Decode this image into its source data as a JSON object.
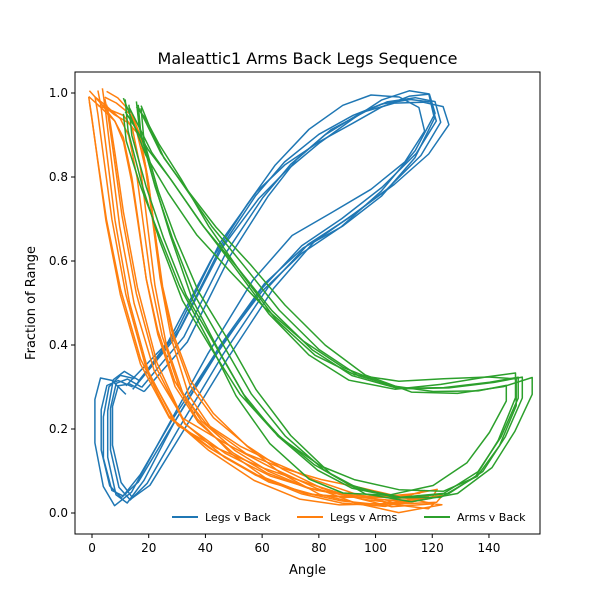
{
  "chart_data": {
    "type": "line",
    "title": "Maleattic1 Arms Back Legs Sequence",
    "xlabel": "Angle",
    "ylabel": "Fraction of Range",
    "xlim": [
      -6,
      158
    ],
    "ylim": [
      -0.05,
      1.05
    ],
    "xticks": [
      0,
      20,
      40,
      60,
      80,
      100,
      120,
      140
    ],
    "yticks": [
      0.0,
      0.2,
      0.4,
      0.6,
      0.8,
      1.0
    ],
    "grid": false,
    "legend_position": "bottom-right",
    "series": [
      {
        "name": "Legs v Back",
        "color": "#1f77b4",
        "cycles": 6,
        "points": [
          [
            15,
            0.3
          ],
          [
            30,
            0.42
          ],
          [
            45,
            0.62
          ],
          [
            58,
            0.75
          ],
          [
            68,
            0.83
          ],
          [
            80,
            0.9
          ],
          [
            92,
            0.95
          ],
          [
            102,
            0.98
          ],
          [
            112,
            0.99
          ],
          [
            119,
            0.98
          ],
          [
            121,
            0.93
          ],
          [
            114,
            0.85
          ],
          [
            102,
            0.77
          ],
          [
            88,
            0.7
          ],
          [
            74,
            0.64
          ],
          [
            60,
            0.54
          ],
          [
            44,
            0.38
          ],
          [
            28,
            0.2
          ],
          [
            17,
            0.07
          ],
          [
            11,
            0.03
          ],
          [
            7,
            0.06
          ],
          [
            4,
            0.15
          ],
          [
            4,
            0.25
          ],
          [
            6,
            0.31
          ],
          [
            10,
            0.32
          ],
          [
            15,
            0.3
          ]
        ]
      },
      {
        "name": "Legs v Arms",
        "color": "#ff7f0e",
        "cycles": 7,
        "points": [
          [
            2,
            0.99
          ],
          [
            6,
            0.97
          ],
          [
            11,
            0.94
          ],
          [
            14,
            0.9
          ],
          [
            17,
            0.8
          ],
          [
            19,
            0.7
          ],
          [
            22,
            0.55
          ],
          [
            26,
            0.42
          ],
          [
            32,
            0.3
          ],
          [
            40,
            0.22
          ],
          [
            52,
            0.15
          ],
          [
            64,
            0.1
          ],
          [
            78,
            0.06
          ],
          [
            92,
            0.04
          ],
          [
            106,
            0.03
          ],
          [
            118,
            0.03
          ],
          [
            120,
            0.04
          ],
          [
            105,
            0.02
          ],
          [
            90,
            0.03
          ],
          [
            76,
            0.05
          ],
          [
            60,
            0.09
          ],
          [
            44,
            0.15
          ],
          [
            30,
            0.22
          ],
          [
            20,
            0.35
          ],
          [
            13,
            0.52
          ],
          [
            8,
            0.7
          ],
          [
            5,
            0.85
          ],
          [
            3,
            0.95
          ],
          [
            2,
            0.99
          ]
        ]
      },
      {
        "name": "Arms v Back",
        "color": "#2ca02c",
        "cycles": 6,
        "points": [
          [
            14,
            0.97
          ],
          [
            17,
            0.93
          ],
          [
            22,
            0.86
          ],
          [
            30,
            0.78
          ],
          [
            40,
            0.68
          ],
          [
            52,
            0.58
          ],
          [
            64,
            0.48
          ],
          [
            78,
            0.39
          ],
          [
            92,
            0.33
          ],
          [
            108,
            0.3
          ],
          [
            124,
            0.3
          ],
          [
            140,
            0.31
          ],
          [
            150,
            0.32
          ],
          [
            150,
            0.27
          ],
          [
            144,
            0.18
          ],
          [
            136,
            0.1
          ],
          [
            124,
            0.05
          ],
          [
            108,
            0.04
          ],
          [
            92,
            0.06
          ],
          [
            80,
            0.1
          ],
          [
            66,
            0.18
          ],
          [
            54,
            0.28
          ],
          [
            44,
            0.4
          ],
          [
            34,
            0.52
          ],
          [
            26,
            0.66
          ],
          [
            20,
            0.78
          ],
          [
            15,
            0.9
          ],
          [
            14,
            0.97
          ]
        ]
      }
    ]
  }
}
